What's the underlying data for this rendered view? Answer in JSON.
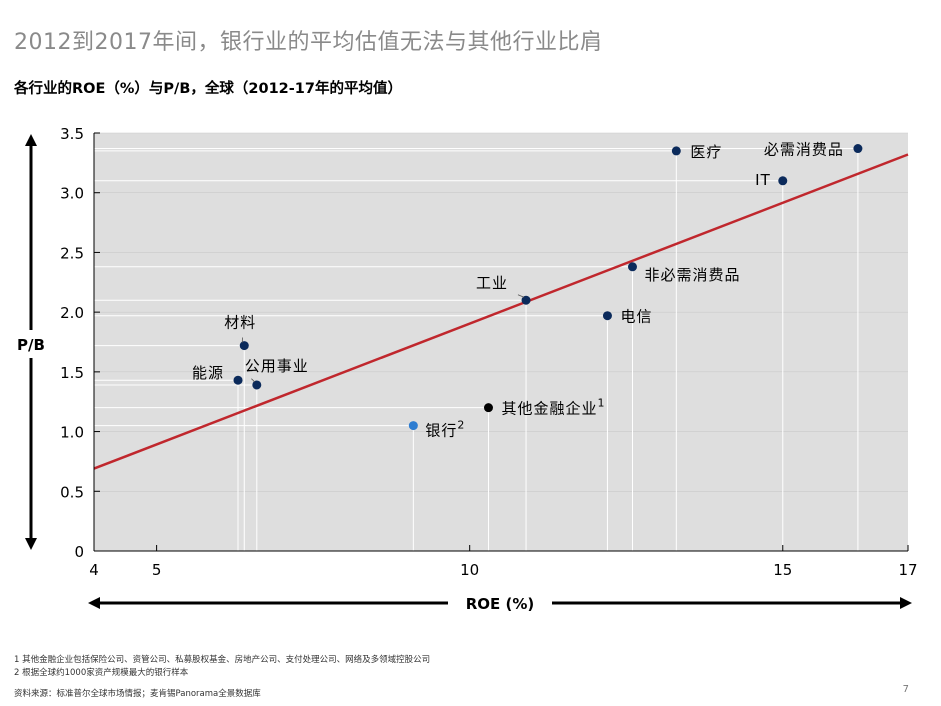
{
  "title": "2012到2017年间，银行业的平均估值无法与其他行业比肩",
  "subtitle": "各行业的ROE（%）与P/B，全球（2012-17年的平均值）",
  "footnotes": [
    "1 其他金融企业包括保险公司、资管公司、私募股权基金、房地产公司、支付处理公司、网络及多领域控股公司",
    "2 根据全球约1000家资产规模最大的银行样本"
  ],
  "source": "资料来源：标准普尔全球市场情报；麦肯锡Panorama全景数据库",
  "page_number": "7",
  "chart_data": {
    "type": "scatter",
    "xlabel": "ROE (%)",
    "ylabel": "P/B",
    "xlim": [
      4,
      17
    ],
    "ylim": [
      0,
      3.5
    ],
    "x_ticks": [
      "4",
      "5",
      "10",
      "15",
      "17"
    ],
    "y_ticks": [
      "0",
      "0.5",
      "1.0",
      "1.5",
      "2.0",
      "2.5",
      "3.0",
      "3.5"
    ],
    "grid": true,
    "colors": {
      "plot_bg": "#dedede",
      "default_point": "#0b2a5b",
      "bank_point": "#2e7dd1",
      "other_fin_point": "#000000",
      "trendline": "#c0272d",
      "guide_lines": "#ffffff"
    },
    "points": [
      {
        "label": "医疗",
        "sup": "",
        "x": 13.3,
        "y": 3.35
      },
      {
        "label": "必需消费品",
        "sup": "",
        "x": 16.2,
        "y": 3.37
      },
      {
        "label": "IT",
        "sup": "",
        "x": 15.0,
        "y": 3.1
      },
      {
        "label": "非必需消费品",
        "sup": "",
        "x": 12.6,
        "y": 2.38
      },
      {
        "label": "工业",
        "sup": "",
        "x": 10.9,
        "y": 2.1
      },
      {
        "label": "电信",
        "sup": "",
        "x": 12.2,
        "y": 1.97
      },
      {
        "label": "材料",
        "sup": "",
        "x": 6.4,
        "y": 1.72
      },
      {
        "label": "能源",
        "sup": "",
        "x": 6.3,
        "y": 1.43
      },
      {
        "label": "公用事业",
        "sup": "",
        "x": 6.6,
        "y": 1.39
      },
      {
        "label": "其他金融企业",
        "sup": "1",
        "x": 10.3,
        "y": 1.2
      },
      {
        "label": "银行",
        "sup": "2",
        "x": 9.1,
        "y": 1.05
      }
    ],
    "trendline": {
      "x": [
        4,
        17
      ],
      "y": [
        0.69,
        3.32
      ]
    }
  }
}
